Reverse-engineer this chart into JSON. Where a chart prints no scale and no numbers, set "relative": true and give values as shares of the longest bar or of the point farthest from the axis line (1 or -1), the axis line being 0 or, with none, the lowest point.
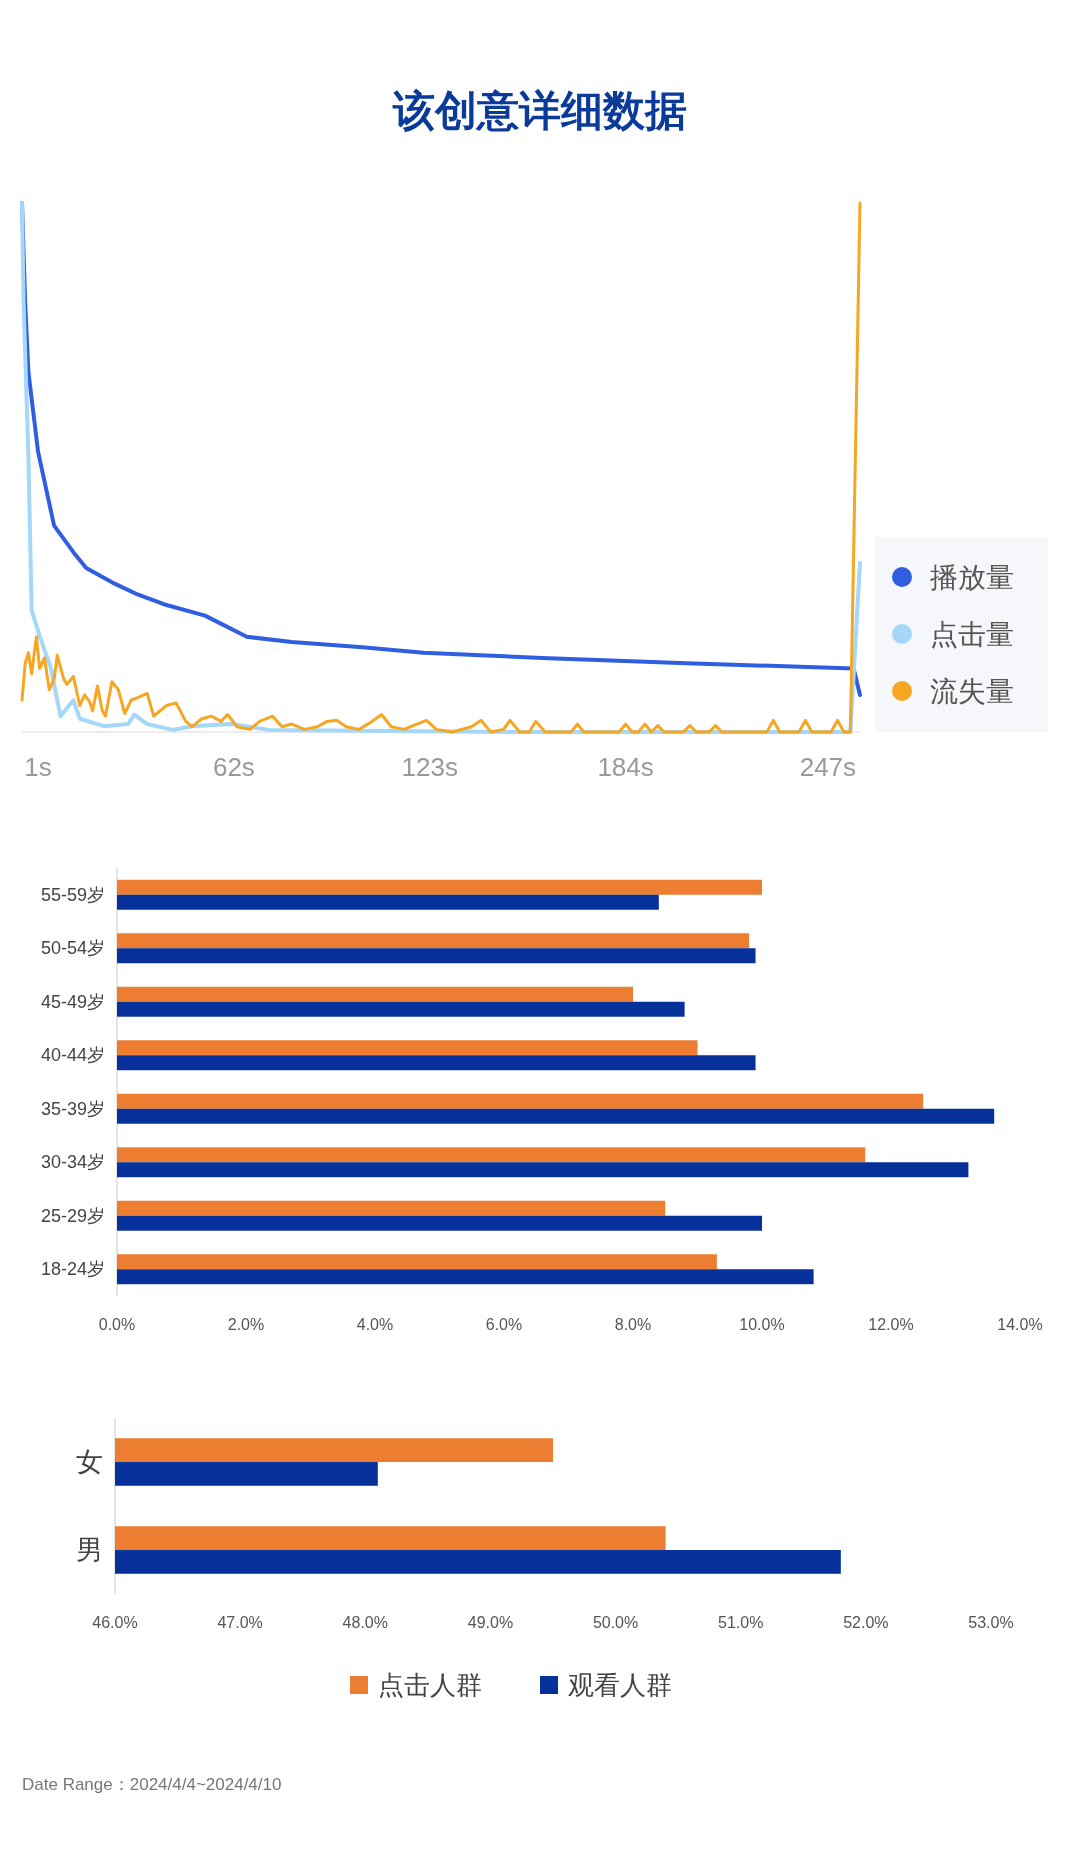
{
  "chart_data": [
    {
      "type": "line",
      "title": "该创意详细数据",
      "relative": true,
      "xlim": [
        -4,
        257
      ],
      "xticks": [
        {
          "value": 1,
          "label": "1s"
        },
        {
          "value": 62,
          "label": "62s"
        },
        {
          "value": 123,
          "label": "123s"
        },
        {
          "value": 184,
          "label": "184s"
        },
        {
          "value": 247,
          "label": "247s"
        }
      ],
      "legend": "right",
      "marker": "none",
      "series": [
        {
          "name": "播放量",
          "color": "#2f5fe0",
          "x": [
            -4,
            -3,
            -2,
            1,
            6,
            12,
            16,
            25,
            32,
            41,
            53,
            66,
            80,
            102,
            121,
            158,
            203,
            255,
            257
          ],
          "values": [
            1.0,
            0.81,
            0.68,
            0.53,
            0.39,
            0.34,
            0.31,
            0.28,
            0.26,
            0.24,
            0.22,
            0.18,
            0.17,
            0.16,
            0.15,
            0.14,
            0.13,
            0.12,
            0.07
          ]
        },
        {
          "name": "点击量",
          "color": "#a5d8f8",
          "x": [
            -4,
            -3.5,
            -2,
            -1,
            1.6,
            5,
            8,
            12,
            14,
            21.5,
            29,
            31,
            35,
            43,
            49,
            61,
            73,
            150,
            254,
            257
          ],
          "values": [
            1.0,
            0.81,
            0.52,
            0.23,
            0.18,
            0.12,
            0.03,
            0.06,
            0.025,
            0.011,
            0.015,
            0.033,
            0.015,
            0.004,
            0.011,
            0.015,
            0.004,
            0,
            0,
            0.32
          ]
        },
        {
          "name": "流失量",
          "color": "#f5a623",
          "x": [
            -4,
            -3,
            -2,
            -1,
            0.5,
            1.5,
            3,
            4.5,
            6,
            7,
            9,
            10,
            12,
            14,
            15.5,
            17,
            18,
            19.5,
            21,
            22,
            24,
            26,
            28,
            30,
            32,
            35,
            37,
            39,
            41,
            44,
            47,
            49,
            52,
            55,
            58,
            60,
            63,
            67,
            70,
            74,
            77,
            80,
            84,
            88,
            91,
            94,
            97,
            101,
            105,
            108,
            111,
            115,
            119,
            122,
            125,
            130,
            136,
            139,
            142,
            146,
            148,
            151,
            154,
            156,
            159,
            167,
            169,
            171,
            182,
            184,
            186,
            188,
            190,
            192,
            194,
            196,
            202,
            204,
            206,
            210,
            212,
            214,
            228,
            230,
            232,
            238,
            240,
            242,
            248,
            250,
            252,
            254,
            257
          ],
          "values": [
            0.06,
            0.13,
            0.15,
            0.11,
            0.18,
            0.12,
            0.14,
            0.08,
            0.1,
            0.145,
            0.1,
            0.09,
            0.105,
            0.05,
            0.07,
            0.058,
            0.04,
            0.087,
            0.04,
            0.03,
            0.095,
            0.08,
            0.035,
            0.06,
            0.065,
            0.073,
            0.03,
            0.04,
            0.05,
            0.055,
            0.02,
            0.01,
            0.025,
            0.03,
            0.02,
            0.033,
            0.01,
            0.005,
            0.02,
            0.03,
            0.01,
            0.015,
            0.005,
            0.01,
            0.02,
            0.022,
            0.01,
            0.005,
            0.02,
            0.033,
            0.01,
            0.005,
            0.015,
            0.022,
            0.005,
            0,
            0.01,
            0.022,
            0,
            0.005,
            0.022,
            0,
            0,
            0.02,
            0,
            0,
            0.015,
            0,
            0,
            0.015,
            0,
            0,
            0.015,
            0,
            0.012,
            0,
            0,
            0.012,
            0,
            0,
            0.012,
            0,
            0,
            0.022,
            0,
            0,
            0.022,
            0,
            0,
            0.022,
            0,
            0,
            1.0
          ]
        }
      ]
    },
    {
      "type": "bar",
      "orientation": "horizontal",
      "categories": [
        "55-59岁",
        "50-54岁",
        "45-49岁",
        "40-44岁",
        "35-39岁",
        "30-34岁",
        "25-29岁",
        "18-24岁"
      ],
      "xlim": [
        0,
        14
      ],
      "xticks": [
        {
          "value": 0,
          "label": "0.0%"
        },
        {
          "value": 2,
          "label": "2.0%"
        },
        {
          "value": 4,
          "label": "4.0%"
        },
        {
          "value": 6,
          "label": "6.0%"
        },
        {
          "value": 8,
          "label": "8.0%"
        },
        {
          "value": 10,
          "label": "10.0%"
        },
        {
          "value": 12,
          "label": "12.0%"
        },
        {
          "value": 14,
          "label": "14.0%"
        }
      ],
      "series": [
        {
          "color": "#ed7d31",
          "values": [
            10.0,
            9.8,
            8.0,
            9.0,
            12.5,
            11.6,
            8.5,
            9.3
          ]
        },
        {
          "color": "#06309a",
          "values": [
            8.4,
            9.9,
            8.8,
            9.9,
            13.6,
            13.2,
            10.0,
            10.8
          ]
        }
      ]
    },
    {
      "type": "bar",
      "orientation": "horizontal",
      "categories": [
        "女",
        "男"
      ],
      "xlim": [
        46,
        53
      ],
      "xticks": [
        {
          "value": 46,
          "label": "46.0%"
        },
        {
          "value": 47,
          "label": "47.0%"
        },
        {
          "value": 48,
          "label": "48.0%"
        },
        {
          "value": 49,
          "label": "49.0%"
        },
        {
          "value": 50,
          "label": "50.0%"
        },
        {
          "value": 51,
          "label": "51.0%"
        },
        {
          "value": 52,
          "label": "52.0%"
        },
        {
          "value": 53,
          "label": "53.0%"
        }
      ],
      "legend": "bottom",
      "series": [
        {
          "name": "点击人群",
          "color": "#ed7d31",
          "values": [
            49.5,
            50.4
          ]
        },
        {
          "name": "观看人群",
          "color": "#06309a",
          "values": [
            48.1,
            51.8
          ]
        }
      ],
      "annotations": [
        "Date Range：2024/4/4~2024/4/10"
      ]
    }
  ]
}
